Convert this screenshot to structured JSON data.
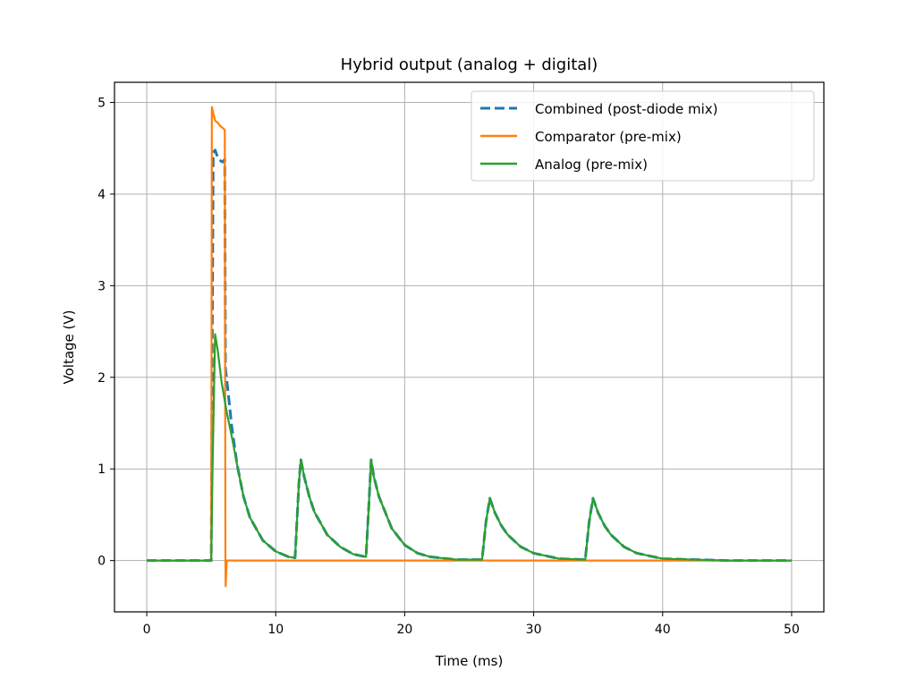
{
  "chart_data": {
    "type": "line",
    "title": "Hybrid output (analog + digital)",
    "xlabel": "Time (ms)",
    "ylabel": "Voltage (V)",
    "xlim": [
      -2.5,
      52.5
    ],
    "ylim": [
      -0.56,
      5.22
    ],
    "xticks": [
      0,
      10,
      20,
      30,
      40,
      50
    ],
    "xtick_labels": [
      "0",
      "10",
      "20",
      "30",
      "40",
      "50"
    ],
    "yticks": [
      0,
      1,
      2,
      3,
      4,
      5
    ],
    "ytick_labels": [
      "0",
      "1",
      "2",
      "3",
      "4",
      "5"
    ],
    "grid": true,
    "legend_position": "top-right",
    "colors": {
      "combined": "#1f77b4",
      "comparator": "#ff7f0e",
      "analog": "#2ca02c"
    },
    "series": [
      {
        "name": "Combined (post-diode mix)",
        "style": "dashed",
        "x": [
          0,
          5.0,
          5.15,
          5.3,
          5.45,
          5.6,
          5.75,
          5.9,
          6.05,
          6.1,
          6.3,
          6.6,
          7.0,
          7.5,
          8.0,
          9.0,
          10.0,
          11.0,
          11.5,
          11.8,
          11.95,
          12.2,
          12.6,
          13.0,
          14.0,
          15.0,
          16.0,
          17.0,
          17.2,
          17.4,
          17.6,
          18.0,
          19.0,
          20.0,
          21.0,
          22.0,
          24.0,
          26.0,
          26.3,
          26.6,
          27.0,
          27.5,
          28.0,
          29.0,
          30.0,
          32.0,
          34.0,
          34.3,
          34.6,
          35.0,
          35.5,
          36.0,
          37.0,
          38.0,
          40.0,
          45.0,
          50.0
        ],
        "y": [
          0,
          0,
          4.45,
          4.48,
          4.42,
          4.38,
          4.36,
          4.35,
          4.38,
          2.1,
          1.85,
          1.45,
          1.05,
          0.7,
          0.47,
          0.22,
          0.1,
          0.04,
          0.03,
          0.85,
          1.1,
          0.92,
          0.7,
          0.53,
          0.28,
          0.15,
          0.07,
          0.04,
          0.55,
          1.1,
          0.92,
          0.7,
          0.35,
          0.17,
          0.08,
          0.04,
          0.01,
          0.01,
          0.42,
          0.68,
          0.52,
          0.38,
          0.28,
          0.15,
          0.08,
          0.02,
          0.01,
          0.42,
          0.68,
          0.52,
          0.38,
          0.28,
          0.15,
          0.08,
          0.02,
          0.0,
          0.0
        ]
      },
      {
        "name": "Comparator (pre-mix)",
        "style": "solid",
        "x": [
          0,
          5.0,
          5.05,
          5.3,
          5.5,
          5.65,
          5.9,
          6.05,
          6.1,
          6.12,
          6.2,
          50.0
        ],
        "y": [
          0,
          0,
          4.95,
          4.8,
          4.78,
          4.75,
          4.72,
          4.7,
          0.0,
          -0.28,
          0.0,
          0.0
        ],
        "tail": {}
      },
      {
        "name": "Analog (pre-mix)",
        "style": "solid",
        "x": [
          0,
          5.0,
          5.1,
          5.3,
          5.5,
          5.8,
          6.2,
          6.6,
          7.0,
          7.5,
          8.0,
          9.0,
          10.0,
          11.0,
          11.5,
          11.8,
          11.95,
          12.2,
          12.6,
          13.0,
          14.0,
          15.0,
          16.0,
          17.0,
          17.2,
          17.4,
          17.6,
          18.0,
          19.0,
          20.0,
          21.0,
          22.0,
          24.0,
          26.0,
          26.3,
          26.6,
          27.0,
          27.5,
          28.0,
          29.0,
          30.0,
          32.0,
          34.0,
          34.3,
          34.6,
          35.0,
          35.5,
          36.0,
          37.0,
          38.0,
          40.0,
          45.0,
          50.0
        ],
        "y": [
          0,
          0,
          1.0,
          2.47,
          2.3,
          1.95,
          1.62,
          1.35,
          1.05,
          0.7,
          0.47,
          0.22,
          0.1,
          0.04,
          0.03,
          0.85,
          1.1,
          0.92,
          0.7,
          0.53,
          0.28,
          0.15,
          0.07,
          0.04,
          0.55,
          1.1,
          0.92,
          0.7,
          0.35,
          0.17,
          0.08,
          0.04,
          0.01,
          0.01,
          0.42,
          0.68,
          0.52,
          0.38,
          0.28,
          0.15,
          0.08,
          0.02,
          0.01,
          0.42,
          0.68,
          0.52,
          0.38,
          0.28,
          0.15,
          0.08,
          0.02,
          0.0,
          0.0
        ]
      }
    ]
  }
}
